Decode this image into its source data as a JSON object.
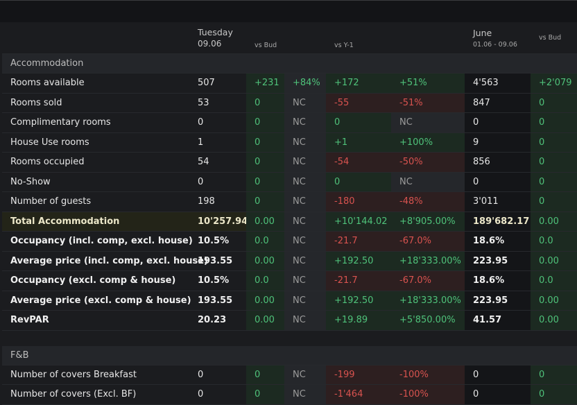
{
  "header": {
    "col1_title": "Tuesday",
    "col1_date": "09.06",
    "col2_label": "vs Bud",
    "col4_label": "vs Y-1",
    "col6_title": "June",
    "col6_date": "01.06 - 09.06",
    "col7_label": "vs Bud"
  },
  "sections": [
    {
      "title": "Accommodation",
      "rows": [
        {
          "label": "Rooms available",
          "day": "507",
          "bud_abs": "+231",
          "bud_pct": "+84%",
          "y1_abs": "+172",
          "y1_pct": "+51%",
          "mtd": "4'563",
          "mtd_bud": "+2'079",
          "bud_abs_tone": "pos",
          "bud_pct_tone": "pos",
          "y1_abs_tone": "pos",
          "y1_pct_tone": "pos",
          "mtd_bud_tone": "pos"
        },
        {
          "label": "Rooms sold",
          "day": "53",
          "bud_abs": "0",
          "bud_pct": "NC",
          "y1_abs": "-55",
          "y1_pct": "-51%",
          "mtd": "847",
          "mtd_bud": "0",
          "bud_abs_tone": "pos",
          "bud_pct_tone": "nc",
          "y1_abs_tone": "neg",
          "y1_pct_tone": "neg",
          "mtd_bud_tone": "pos"
        },
        {
          "label": "Complimentary rooms",
          "day": "0",
          "bud_abs": "0",
          "bud_pct": "NC",
          "y1_abs": "0",
          "y1_pct": "NC",
          "mtd": "0",
          "mtd_bud": "0",
          "bud_abs_tone": "pos",
          "bud_pct_tone": "nc",
          "y1_abs_tone": "pos",
          "y1_pct_tone": "nc",
          "mtd_bud_tone": "pos"
        },
        {
          "label": "House Use rooms",
          "day": "1",
          "bud_abs": "0",
          "bud_pct": "NC",
          "y1_abs": "+1",
          "y1_pct": "+100%",
          "mtd": "9",
          "mtd_bud": "0",
          "bud_abs_tone": "pos",
          "bud_pct_tone": "nc",
          "y1_abs_tone": "pos",
          "y1_pct_tone": "pos",
          "mtd_bud_tone": "pos"
        },
        {
          "label": "Rooms occupied",
          "day": "54",
          "bud_abs": "0",
          "bud_pct": "NC",
          "y1_abs": "-54",
          "y1_pct": "-50%",
          "mtd": "856",
          "mtd_bud": "0",
          "bud_abs_tone": "pos",
          "bud_pct_tone": "nc",
          "y1_abs_tone": "neg",
          "y1_pct_tone": "neg",
          "mtd_bud_tone": "pos"
        },
        {
          "label": "No-Show",
          "day": "0",
          "bud_abs": "0",
          "bud_pct": "NC",
          "y1_abs": "0",
          "y1_pct": "NC",
          "mtd": "0",
          "mtd_bud": "0",
          "bud_abs_tone": "pos",
          "bud_pct_tone": "nc",
          "y1_abs_tone": "pos",
          "y1_pct_tone": "nc",
          "mtd_bud_tone": "pos"
        },
        {
          "label": "Number of guests",
          "day": "198",
          "bud_abs": "0",
          "bud_pct": "NC",
          "y1_abs": "-180",
          "y1_pct": "-48%",
          "mtd": "3'011",
          "mtd_bud": "0",
          "bud_abs_tone": "pos",
          "bud_pct_tone": "nc",
          "y1_abs_tone": "neg",
          "y1_pct_tone": "neg",
          "mtd_bud_tone": "pos"
        },
        {
          "label": "Total Accommodation",
          "day": "10'257.94",
          "bud_abs": "0.00",
          "bud_pct": "NC",
          "y1_abs": "+10'144.02",
          "y1_pct": "+8'905.00%",
          "mtd": "189'682.17",
          "mtd_bud": "0.00",
          "style": "total",
          "bud_abs_tone": "pos",
          "bud_pct_tone": "nc",
          "y1_abs_tone": "pos",
          "y1_pct_tone": "pos",
          "mtd_bud_tone": "pos"
        },
        {
          "label": "Occupancy (incl. comp, excl. house)",
          "day": "10.5%",
          "bud_abs": "0.0",
          "bud_pct": "NC",
          "y1_abs": "-21.7",
          "y1_pct": "-67.0%",
          "mtd": "18.6%",
          "mtd_bud": "0.0",
          "style": "bold",
          "bud_abs_tone": "pos",
          "bud_pct_tone": "nc",
          "y1_abs_tone": "neg",
          "y1_pct_tone": "neg",
          "mtd_bud_tone": "pos"
        },
        {
          "label": "Average price (incl. comp, excl. house)",
          "day": "193.55",
          "bud_abs": "0.00",
          "bud_pct": "NC",
          "y1_abs": "+192.50",
          "y1_pct": "+18'333.00%",
          "mtd": "223.95",
          "mtd_bud": "0.00",
          "style": "bold",
          "bud_abs_tone": "pos",
          "bud_pct_tone": "nc",
          "y1_abs_tone": "pos",
          "y1_pct_tone": "pos",
          "mtd_bud_tone": "pos"
        },
        {
          "label": "Occupancy (excl. comp & house)",
          "day": "10.5%",
          "bud_abs": "0.0",
          "bud_pct": "NC",
          "y1_abs": "-21.7",
          "y1_pct": "-67.0%",
          "mtd": "18.6%",
          "mtd_bud": "0.0",
          "style": "bold",
          "bud_abs_tone": "pos",
          "bud_pct_tone": "nc",
          "y1_abs_tone": "neg",
          "y1_pct_tone": "neg",
          "mtd_bud_tone": "pos"
        },
        {
          "label": "Average price (excl. comp & house)",
          "day": "193.55",
          "bud_abs": "0.00",
          "bud_pct": "NC",
          "y1_abs": "+192.50",
          "y1_pct": "+18'333.00%",
          "mtd": "223.95",
          "mtd_bud": "0.00",
          "style": "bold",
          "bud_abs_tone": "pos",
          "bud_pct_tone": "nc",
          "y1_abs_tone": "pos",
          "y1_pct_tone": "pos",
          "mtd_bud_tone": "pos"
        },
        {
          "label": "RevPAR",
          "day": "20.23",
          "bud_abs": "0.00",
          "bud_pct": "NC",
          "y1_abs": "+19.89",
          "y1_pct": "+5'850.00%",
          "mtd": "41.57",
          "mtd_bud": "0.00",
          "style": "bold",
          "bud_abs_tone": "pos",
          "bud_pct_tone": "nc",
          "y1_abs_tone": "pos",
          "y1_pct_tone": "pos",
          "mtd_bud_tone": "pos"
        }
      ]
    },
    {
      "title": "F&B",
      "rows": [
        {
          "label": "Number of covers Breakfast",
          "day": "0",
          "bud_abs": "0",
          "bud_pct": "NC",
          "y1_abs": "-199",
          "y1_pct": "-100%",
          "mtd": "0",
          "mtd_bud": "0",
          "bud_abs_tone": "pos",
          "bud_pct_tone": "nc",
          "y1_abs_tone": "neg",
          "y1_pct_tone": "neg",
          "mtd_bud_tone": "pos"
        },
        {
          "label": "Number of covers (Excl. BF)",
          "day": "0",
          "bud_abs": "0",
          "bud_pct": "NC",
          "y1_abs": "-1'464",
          "y1_pct": "-100%",
          "mtd": "0",
          "mtd_bud": "0",
          "bud_abs_tone": "pos",
          "bud_pct_tone": "nc",
          "y1_abs_tone": "neg",
          "y1_pct_tone": "neg",
          "mtd_bud_tone": "pos"
        }
      ]
    }
  ]
}
